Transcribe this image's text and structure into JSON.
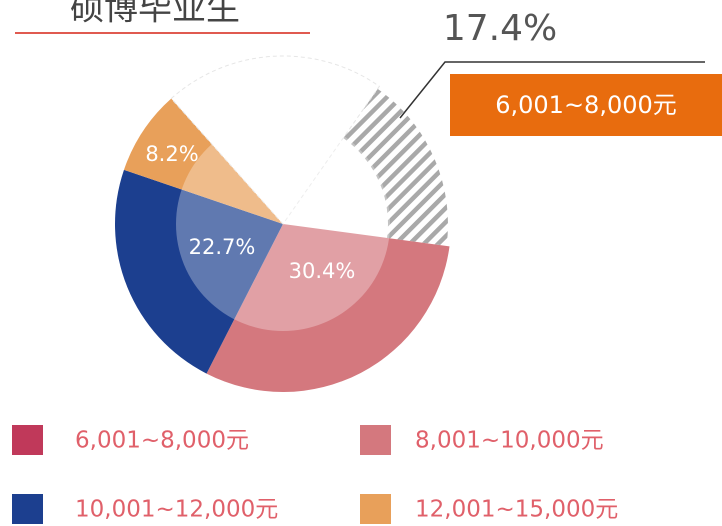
{
  "chart_data": {
    "type": "pie",
    "title": "硕博毕业生",
    "categories": [
      "6,001~8,000元",
      "8,001~10,000元",
      "10,001~12,000元",
      "12,001~15,000元",
      null
    ],
    "values": [
      17.4,
      30.4,
      22.7,
      8.2,
      21.3
    ],
    "value_labels": [
      "17.4%",
      "30.4%",
      "22.7%",
      "8.2%",
      null
    ],
    "colors": [
      "#a9a9a9",
      "#d4787e",
      "#1c3f8f",
      "#e8a05a",
      "#ffffff"
    ],
    "legend_colors": [
      "#c0395a",
      "#d4787e",
      "#1c3f8f",
      "#e8a05a"
    ]
  }
}
